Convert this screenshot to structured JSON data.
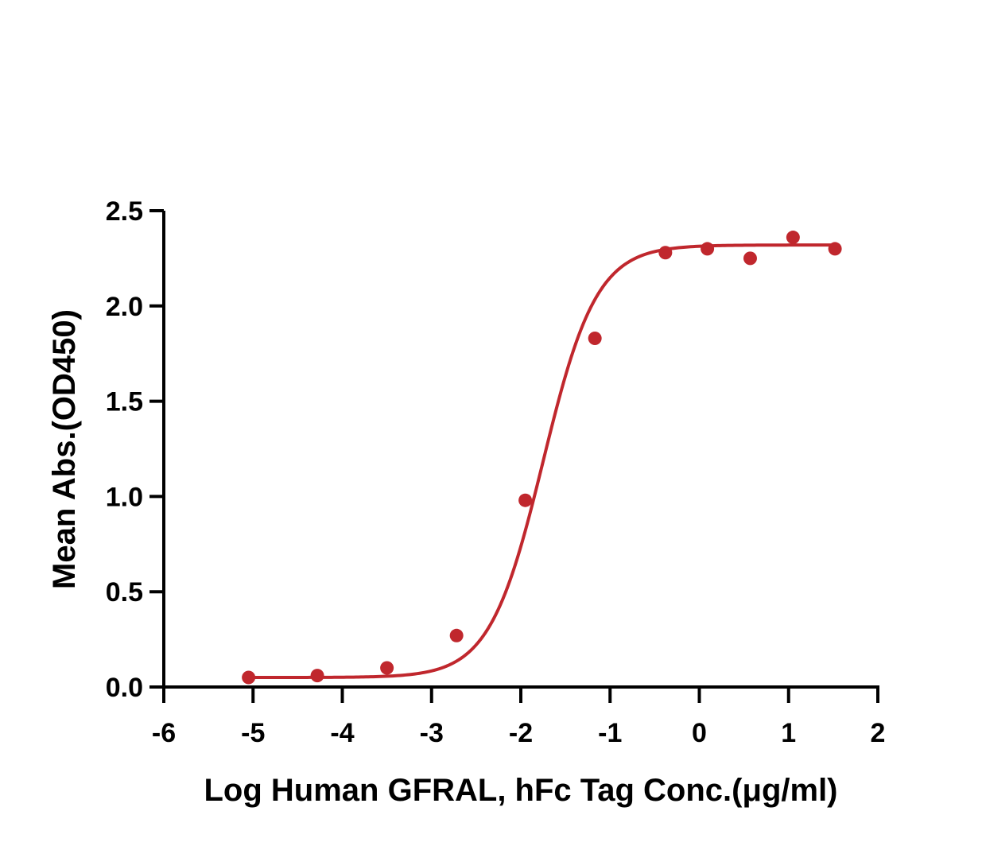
{
  "chart_data": {
    "type": "scatter",
    "title": "",
    "xlabel": "Log Human GFRAL, hFc Tag Conc.(μg/ml)",
    "ylabel": "Mean Abs.(OD450)",
    "xlim": [
      -6,
      2
    ],
    "ylim": [
      0,
      2.5
    ],
    "x_ticks": [
      -6,
      -5,
      -4,
      -3,
      -2,
      -1,
      0,
      1,
      2
    ],
    "x_tick_labels": [
      "-6",
      "-5",
      "-4",
      "-3",
      "-2",
      "-1",
      "0",
      "1",
      "2"
    ],
    "y_ticks": [
      0,
      0.5,
      1.0,
      1.5,
      2.0,
      2.5
    ],
    "y_tick_labels": [
      "0.0",
      "0.5",
      "1.0",
      "1.5",
      "2.0",
      "2.5"
    ],
    "grid": false,
    "legend": "none",
    "color": "#c0272d",
    "series": [
      {
        "points": [
          {
            "x": -5.05,
            "y": 0.05
          },
          {
            "x": -4.28,
            "y": 0.06
          },
          {
            "x": -3.5,
            "y": 0.1
          },
          {
            "x": -2.72,
            "y": 0.27
          },
          {
            "x": -1.95,
            "y": 0.98
          },
          {
            "x": -1.17,
            "y": 1.83
          },
          {
            "x": -0.38,
            "y": 2.28
          },
          {
            "x": 0.09,
            "y": 2.3
          },
          {
            "x": 0.57,
            "y": 2.25
          },
          {
            "x": 1.05,
            "y": 2.36
          },
          {
            "x": 1.52,
            "y": 2.3
          }
        ],
        "fit": {
          "model": "4PL",
          "bottom": 0.05,
          "top": 2.32,
          "log_ec50": -1.75,
          "hill_slope": 1.45
        }
      }
    ]
  }
}
